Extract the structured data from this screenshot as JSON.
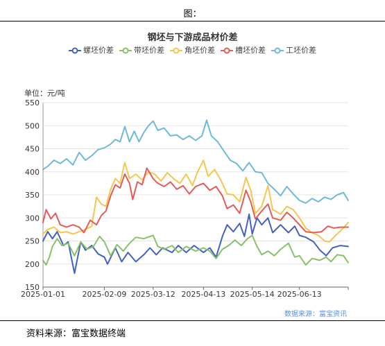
{
  "header": {
    "figure_label": "图："
  },
  "footer": {
    "source_note": "资料来源：富宝数据终端"
  },
  "chart_data": {
    "type": "line",
    "title": "钢坯与下游成品材价差",
    "unit_label": "单位：元/吨",
    "source_label": "数据来源：富宝资讯",
    "legend_position": "top",
    "grid": true,
    "ylim": [
      150,
      550
    ],
    "yticks": [
      150,
      200,
      250,
      300,
      350,
      400,
      450,
      500,
      550
    ],
    "xlim": [
      "2025-01-01",
      "2025-07-14"
    ],
    "xticks": [
      "2025-01-01",
      "2025-02-09",
      "2025-03-12",
      "2025-04-13",
      "2025-05-14",
      "2025-06-13"
    ],
    "series": [
      {
        "name": "螺坯价差",
        "color": "#4260c2",
        "points": [
          [
            "2025-01-01",
            250
          ],
          [
            "2025-01-04",
            270
          ],
          [
            "2025-01-07",
            255
          ],
          [
            "2025-01-10",
            270
          ],
          [
            "2025-01-14",
            240
          ],
          [
            "2025-01-17",
            248
          ],
          [
            "2025-01-21",
            180
          ],
          [
            "2025-01-25",
            248
          ],
          [
            "2025-01-28",
            230
          ],
          [
            "2025-02-01",
            240
          ],
          [
            "2025-02-05",
            222
          ],
          [
            "2025-02-09",
            215
          ],
          [
            "2025-02-11",
            200
          ],
          [
            "2025-02-16",
            235
          ],
          [
            "2025-02-20",
            205
          ],
          [
            "2025-02-24",
            225
          ],
          [
            "2025-03-01",
            205
          ],
          [
            "2025-03-06",
            220
          ],
          [
            "2025-03-10",
            235
          ],
          [
            "2025-03-14",
            220
          ],
          [
            "2025-03-18",
            235
          ],
          [
            "2025-03-24",
            225
          ],
          [
            "2025-03-28",
            240
          ],
          [
            "2025-04-02",
            225
          ],
          [
            "2025-04-07",
            240
          ],
          [
            "2025-04-13",
            225
          ],
          [
            "2025-04-17",
            235
          ],
          [
            "2025-04-21",
            215
          ],
          [
            "2025-04-25",
            260
          ],
          [
            "2025-04-28",
            285
          ],
          [
            "2025-05-02",
            270
          ],
          [
            "2025-05-06",
            288
          ],
          [
            "2025-05-09",
            260
          ],
          [
            "2025-05-12",
            308
          ],
          [
            "2025-05-14",
            265
          ],
          [
            "2025-05-17",
            300
          ],
          [
            "2025-05-20",
            285
          ],
          [
            "2025-05-24",
            300
          ],
          [
            "2025-05-27",
            268
          ],
          [
            "2025-06-01",
            285
          ],
          [
            "2025-06-06",
            268
          ],
          [
            "2025-06-10",
            282
          ],
          [
            "2025-06-13",
            262
          ],
          [
            "2025-06-17",
            258
          ],
          [
            "2025-06-22",
            248
          ],
          [
            "2025-06-26",
            230
          ],
          [
            "2025-06-30",
            218
          ],
          [
            "2025-07-04",
            235
          ],
          [
            "2025-07-09",
            240
          ],
          [
            "2025-07-14",
            238
          ]
        ]
      },
      {
        "name": "带坯价差",
        "color": "#88c06a",
        "points": [
          [
            "2025-01-01",
            208
          ],
          [
            "2025-01-03",
            198
          ],
          [
            "2025-01-05",
            215
          ],
          [
            "2025-01-07",
            238
          ],
          [
            "2025-01-10",
            255
          ],
          [
            "2025-01-13",
            240
          ],
          [
            "2025-01-17",
            245
          ],
          [
            "2025-01-21",
            218
          ],
          [
            "2025-01-25",
            248
          ],
          [
            "2025-01-29",
            232
          ],
          [
            "2025-02-02",
            238
          ],
          [
            "2025-02-06",
            260
          ],
          [
            "2025-02-09",
            248
          ],
          [
            "2025-02-13",
            218
          ],
          [
            "2025-02-17",
            242
          ],
          [
            "2025-02-21",
            228
          ],
          [
            "2025-02-25",
            245
          ],
          [
            "2025-03-01",
            258
          ],
          [
            "2025-03-06",
            255
          ],
          [
            "2025-03-12",
            262
          ],
          [
            "2025-03-15",
            238
          ],
          [
            "2025-03-19",
            232
          ],
          [
            "2025-03-24",
            240
          ],
          [
            "2025-03-28",
            225
          ],
          [
            "2025-04-02",
            238
          ],
          [
            "2025-04-08",
            228
          ],
          [
            "2025-04-13",
            235
          ],
          [
            "2025-04-17",
            228
          ],
          [
            "2025-04-21",
            212
          ],
          [
            "2025-04-25",
            232
          ],
          [
            "2025-04-29",
            240
          ],
          [
            "2025-05-03",
            252
          ],
          [
            "2025-05-07",
            240
          ],
          [
            "2025-05-11",
            255
          ],
          [
            "2025-05-14",
            262
          ],
          [
            "2025-05-17",
            238
          ],
          [
            "2025-05-20",
            220
          ],
          [
            "2025-05-24",
            228
          ],
          [
            "2025-05-28",
            218
          ],
          [
            "2025-06-01",
            232
          ],
          [
            "2025-06-06",
            245
          ],
          [
            "2025-06-10",
            215
          ],
          [
            "2025-06-13",
            218
          ],
          [
            "2025-06-17",
            198
          ],
          [
            "2025-06-21",
            212
          ],
          [
            "2025-06-26",
            208
          ],
          [
            "2025-06-30",
            215
          ],
          [
            "2025-07-03",
            205
          ],
          [
            "2025-07-07",
            220
          ],
          [
            "2025-07-11",
            218
          ],
          [
            "2025-07-14",
            203
          ]
        ]
      },
      {
        "name": "角坯价差",
        "color": "#f4c64e",
        "points": [
          [
            "2025-01-01",
            265
          ],
          [
            "2025-01-04",
            275
          ],
          [
            "2025-01-08",
            280
          ],
          [
            "2025-01-12",
            268
          ],
          [
            "2025-01-16",
            270
          ],
          [
            "2025-01-20",
            265
          ],
          [
            "2025-01-24",
            270
          ],
          [
            "2025-01-28",
            275
          ],
          [
            "2025-02-01",
            282
          ],
          [
            "2025-02-04",
            345
          ],
          [
            "2025-02-07",
            330
          ],
          [
            "2025-02-10",
            325
          ],
          [
            "2025-02-13",
            362
          ],
          [
            "2025-02-16",
            385
          ],
          [
            "2025-02-19",
            375
          ],
          [
            "2025-02-22",
            420
          ],
          [
            "2025-02-25",
            385
          ],
          [
            "2025-03-01",
            395
          ],
          [
            "2025-03-05",
            382
          ],
          [
            "2025-03-09",
            400
          ],
          [
            "2025-03-13",
            395
          ],
          [
            "2025-03-17",
            380
          ],
          [
            "2025-03-21",
            398
          ],
          [
            "2025-03-25",
            385
          ],
          [
            "2025-03-29",
            375
          ],
          [
            "2025-04-02",
            395
          ],
          [
            "2025-04-06",
            370
          ],
          [
            "2025-04-09",
            398
          ],
          [
            "2025-04-13",
            425
          ],
          [
            "2025-04-16",
            390
          ],
          [
            "2025-04-20",
            405
          ],
          [
            "2025-04-24",
            382
          ],
          [
            "2025-04-28",
            352
          ],
          [
            "2025-05-02",
            350
          ],
          [
            "2025-05-06",
            335
          ],
          [
            "2025-05-10",
            388
          ],
          [
            "2025-05-13",
            360
          ],
          [
            "2025-05-16",
            310
          ],
          [
            "2025-05-20",
            325
          ],
          [
            "2025-05-24",
            370
          ],
          [
            "2025-05-27",
            318
          ],
          [
            "2025-06-01",
            308
          ],
          [
            "2025-06-05",
            325
          ],
          [
            "2025-06-09",
            318
          ],
          [
            "2025-06-13",
            300
          ],
          [
            "2025-06-17",
            278
          ],
          [
            "2025-06-21",
            268
          ],
          [
            "2025-06-25",
            262
          ],
          [
            "2025-06-29",
            250
          ],
          [
            "2025-07-02",
            248
          ],
          [
            "2025-07-06",
            262
          ],
          [
            "2025-07-10",
            275
          ],
          [
            "2025-07-14",
            290
          ]
        ]
      },
      {
        "name": "槽坯价差",
        "color": "#e35a57",
        "points": [
          [
            "2025-01-01",
            290
          ],
          [
            "2025-01-03",
            318
          ],
          [
            "2025-01-06",
            298
          ],
          [
            "2025-01-09",
            310
          ],
          [
            "2025-01-12",
            285
          ],
          [
            "2025-01-16",
            280
          ],
          [
            "2025-01-20",
            285
          ],
          [
            "2025-01-24",
            280
          ],
          [
            "2025-01-27",
            268
          ],
          [
            "2025-01-31",
            295
          ],
          [
            "2025-02-04",
            285
          ],
          [
            "2025-02-07",
            305
          ],
          [
            "2025-02-10",
            315
          ],
          [
            "2025-02-13",
            348
          ],
          [
            "2025-02-16",
            372
          ],
          [
            "2025-02-19",
            365
          ],
          [
            "2025-02-22",
            395
          ],
          [
            "2025-02-25",
            375
          ],
          [
            "2025-02-27",
            340
          ],
          [
            "2025-03-02",
            378
          ],
          [
            "2025-03-05",
            372
          ],
          [
            "2025-03-08",
            408
          ],
          [
            "2025-03-12",
            385
          ],
          [
            "2025-03-15",
            375
          ],
          [
            "2025-03-19",
            368
          ],
          [
            "2025-03-23",
            378
          ],
          [
            "2025-03-27",
            362
          ],
          [
            "2025-03-31",
            370
          ],
          [
            "2025-04-04",
            352
          ],
          [
            "2025-04-08",
            368
          ],
          [
            "2025-04-13",
            375
          ],
          [
            "2025-04-17",
            360
          ],
          [
            "2025-04-21",
            368
          ],
          [
            "2025-04-25",
            348
          ],
          [
            "2025-04-28",
            320
          ],
          [
            "2025-05-02",
            328
          ],
          [
            "2025-05-06",
            310
          ],
          [
            "2025-05-10",
            360
          ],
          [
            "2025-05-13",
            335
          ],
          [
            "2025-05-16",
            298
          ],
          [
            "2025-05-20",
            315
          ],
          [
            "2025-05-24",
            330
          ],
          [
            "2025-05-27",
            300
          ],
          [
            "2025-06-01",
            295
          ],
          [
            "2025-06-05",
            312
          ],
          [
            "2025-06-09",
            300
          ],
          [
            "2025-06-13",
            285
          ],
          [
            "2025-06-17",
            270
          ],
          [
            "2025-06-22",
            268
          ],
          [
            "2025-06-27",
            270
          ],
          [
            "2025-07-01",
            282
          ],
          [
            "2025-07-05",
            278
          ],
          [
            "2025-07-09",
            280
          ],
          [
            "2025-07-14",
            280
          ]
        ]
      },
      {
        "name": "工坯价差",
        "color": "#6cbad7",
        "points": [
          [
            "2025-01-01",
            405
          ],
          [
            "2025-01-04",
            412
          ],
          [
            "2025-01-08",
            425
          ],
          [
            "2025-01-12",
            418
          ],
          [
            "2025-01-16",
            428
          ],
          [
            "2025-01-20",
            415
          ],
          [
            "2025-01-24",
            442
          ],
          [
            "2025-01-28",
            425
          ],
          [
            "2025-02-01",
            435
          ],
          [
            "2025-02-05",
            448
          ],
          [
            "2025-02-09",
            452
          ],
          [
            "2025-02-13",
            460
          ],
          [
            "2025-02-16",
            470
          ],
          [
            "2025-02-19",
            465
          ],
          [
            "2025-02-22",
            498
          ],
          [
            "2025-02-25",
            465
          ],
          [
            "2025-02-28",
            488
          ],
          [
            "2025-03-03",
            465
          ],
          [
            "2025-03-06",
            485
          ],
          [
            "2025-03-09",
            500
          ],
          [
            "2025-03-12",
            510
          ],
          [
            "2025-03-15",
            490
          ],
          [
            "2025-03-19",
            495
          ],
          [
            "2025-03-23",
            478
          ],
          [
            "2025-03-27",
            480
          ],
          [
            "2025-03-31",
            470
          ],
          [
            "2025-04-04",
            478
          ],
          [
            "2025-04-08",
            468
          ],
          [
            "2025-04-12",
            478
          ],
          [
            "2025-04-15",
            512
          ],
          [
            "2025-04-18",
            478
          ],
          [
            "2025-04-22",
            465
          ],
          [
            "2025-04-26",
            445
          ],
          [
            "2025-04-30",
            425
          ],
          [
            "2025-05-04",
            418
          ],
          [
            "2025-05-08",
            402
          ],
          [
            "2025-05-12",
            420
          ],
          [
            "2025-05-16",
            400
          ],
          [
            "2025-05-20",
            398
          ],
          [
            "2025-05-24",
            375
          ],
          [
            "2025-05-28",
            362
          ],
          [
            "2025-06-01",
            348
          ],
          [
            "2025-06-05",
            368
          ],
          [
            "2025-06-09",
            352
          ],
          [
            "2025-06-13",
            338
          ],
          [
            "2025-06-17",
            332
          ],
          [
            "2025-06-21",
            342
          ],
          [
            "2025-06-25",
            335
          ],
          [
            "2025-06-29",
            345
          ],
          [
            "2025-07-03",
            340
          ],
          [
            "2025-07-07",
            350
          ],
          [
            "2025-07-11",
            355
          ],
          [
            "2025-07-14",
            338
          ]
        ]
      }
    ]
  }
}
